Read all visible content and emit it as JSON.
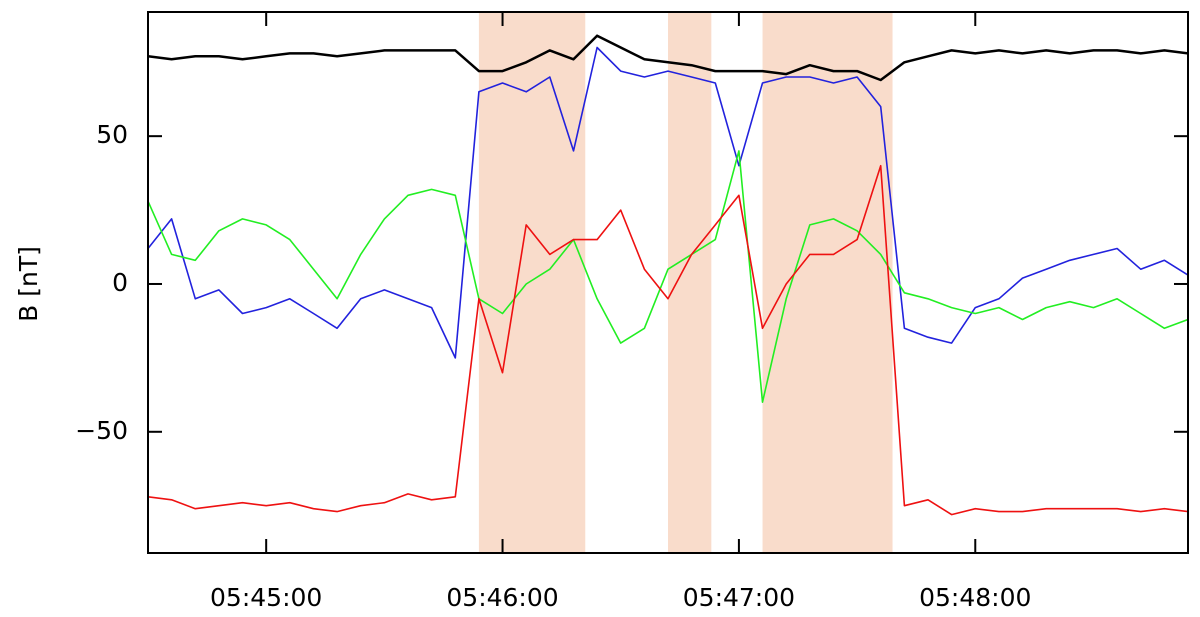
{
  "chart_data": {
    "type": "line",
    "y_label": "B [nT]",
    "x": [
      "05:44:30",
      "05:44:36",
      "05:44:42",
      "05:44:48",
      "05:44:54",
      "05:45:00",
      "05:45:06",
      "05:45:12",
      "05:45:18",
      "05:45:24",
      "05:45:30",
      "05:45:36",
      "05:45:42",
      "05:45:48",
      "05:45:54",
      "05:46:00",
      "05:46:06",
      "05:46:12",
      "05:46:18",
      "05:46:24",
      "05:46:30",
      "05:46:36",
      "05:46:42",
      "05:46:48",
      "05:46:54",
      "05:47:00",
      "05:47:06",
      "05:47:12",
      "05:47:18",
      "05:47:24",
      "05:47:30",
      "05:47:36",
      "05:47:42",
      "05:47:48",
      "05:47:54",
      "05:48:00",
      "05:48:06",
      "05:48:12",
      "05:48:18",
      "05:48:24",
      "05:48:30",
      "05:48:36",
      "05:48:42",
      "05:48:48",
      "05:48:54"
    ],
    "series": [
      {
        "color": "#2222dd",
        "values": [
          12,
          22,
          -5,
          -2,
          -10,
          -8,
          -5,
          -10,
          -15,
          -5,
          -2,
          -5,
          -8,
          -25,
          65,
          68,
          65,
          70,
          45,
          80,
          72,
          70,
          72,
          70,
          68,
          40,
          68,
          70,
          70,
          68,
          70,
          60,
          -15,
          -18,
          -20,
          -8,
          -5,
          2,
          5,
          8,
          10,
          12,
          5,
          8,
          3
        ]
      },
      {
        "color": "#22ee22",
        "values": [
          28,
          10,
          8,
          18,
          22,
          20,
          15,
          5,
          -5,
          10,
          22,
          30,
          32,
          30,
          -5,
          -10,
          0,
          5,
          15,
          -5,
          -20,
          -15,
          5,
          10,
          15,
          45,
          -40,
          -5,
          20,
          22,
          18,
          10,
          -3,
          -5,
          -8,
          -10,
          -8,
          -12,
          -8,
          -6,
          -8,
          -5,
          -10,
          -15,
          -12
        ]
      },
      {
        "color": "#ee1111",
        "values": [
          -72,
          -73,
          -76,
          -75,
          -74,
          -75,
          -74,
          -76,
          -77,
          -75,
          -74,
          -71,
          -73,
          -72,
          -5,
          -30,
          20,
          10,
          15,
          15,
          25,
          5,
          -5,
          10,
          20,
          30,
          -15,
          0,
          10,
          10,
          15,
          40,
          -75,
          -73,
          -78,
          -76,
          -77,
          -77,
          -76,
          -76,
          -76,
          -76,
          -77,
          -76,
          -77
        ]
      },
      {
        "color": "#000000",
        "values": [
          77,
          76,
          77,
          77,
          76,
          77,
          78,
          78,
          77,
          78,
          79,
          79,
          79,
          79,
          72,
          72,
          75,
          79,
          76,
          84,
          80,
          76,
          75,
          74,
          72,
          72,
          72,
          71,
          74,
          72,
          72,
          69,
          75,
          77,
          79,
          78,
          79,
          78,
          79,
          78,
          79,
          79,
          78,
          79,
          78
        ]
      }
    ],
    "shaded_intervals": [
      [
        "05:45:54",
        "05:46:21"
      ],
      [
        "05:46:42",
        "05:46:53"
      ],
      [
        "05:47:06",
        "05:47:39"
      ]
    ],
    "shade_color": "#f9dccb",
    "xlim": [
      "05:44:30",
      "05:48:54"
    ],
    "xticks": [
      "05:45:00",
      "05:46:00",
      "05:47:00",
      "05:48:00"
    ],
    "ylim": [
      -91,
      92
    ],
    "yticks": [
      {
        "value": -50,
        "label": "−50"
      },
      0,
      50
    ]
  }
}
